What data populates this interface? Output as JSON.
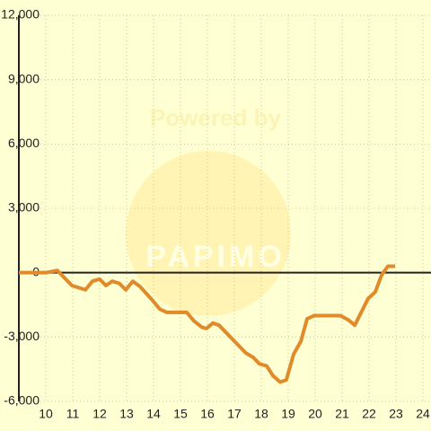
{
  "chart_data": {
    "type": "line",
    "watermark": [
      "Powered by",
      "PAPIMO"
    ],
    "x": [
      9,
      10,
      10.43,
      10.97,
      11.47,
      11.73,
      12,
      12.23,
      12.47,
      12.73,
      12.97,
      13.23,
      13.5,
      13.97,
      14.23,
      14.5,
      15.23,
      15.5,
      15.8,
      15.97,
      16.2,
      16.43,
      16.93,
      17.43,
      17.7,
      17.93,
      18.2,
      18.43,
      18.7,
      18.93,
      19.2,
      19.47,
      19.7,
      19.97,
      20.93,
      21.23,
      21.47,
      21.97,
      22.23,
      22.47,
      22.7,
      22.97
    ],
    "series": [
      {
        "color": "#e08a2a",
        "values": [
          0,
          0,
          100,
          -600,
          -800,
          -400,
          -300,
          -600,
          -400,
          -500,
          -800,
          -400,
          -650,
          -1300,
          -1700,
          -1850,
          -1850,
          -2250,
          -2550,
          -2600,
          -2350,
          -2450,
          -3100,
          -3750,
          -3950,
          -4250,
          -4350,
          -4800,
          -5100,
          -5000,
          -3800,
          -3200,
          -2150,
          -2000,
          -2000,
          -2200,
          -2450,
          -1200,
          -900,
          -100,
          300,
          300
        ]
      }
    ],
    "xlim": [
      9,
      24.3
    ],
    "xticks": [
      10,
      11,
      12,
      13,
      14,
      15,
      16,
      17,
      18,
      19,
      20,
      21,
      22,
      23,
      24
    ],
    "ylim": [
      -6000,
      12000
    ],
    "yticks": [
      {
        "value": -6000,
        "label": "-6,000"
      },
      {
        "value": -3000,
        "label": "-3,000"
      },
      0,
      {
        "value": 3000,
        "label": "3,000"
      },
      {
        "value": 6000,
        "label": "6,000"
      },
      {
        "value": 9000,
        "label": "9,000"
      },
      {
        "value": 12000,
        "label": "12,000"
      }
    ],
    "grid": true
  }
}
